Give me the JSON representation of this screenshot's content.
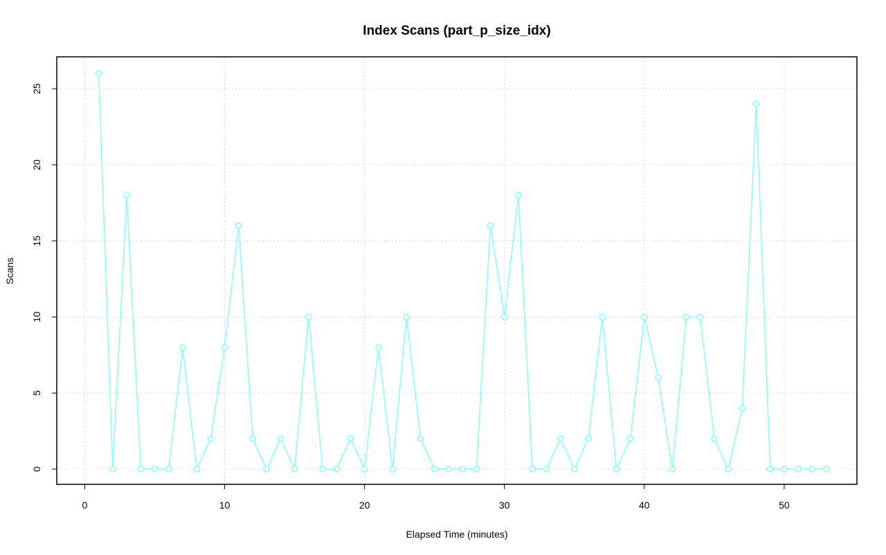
{
  "chart_data": {
    "type": "line",
    "title": "Index Scans (part_p_size_idx)",
    "xlabel": "Elapsed Time (minutes)",
    "ylabel": "Scans",
    "xlim": [
      -2,
      55.2
    ],
    "ylim": [
      -1,
      27.1
    ],
    "xticks": [
      0,
      10,
      20,
      30,
      40,
      50
    ],
    "yticks": [
      0,
      5,
      10,
      15,
      20,
      25
    ],
    "grid": true,
    "series_color": "#7fffff",
    "x": [
      1,
      2,
      3,
      4,
      5,
      6,
      7,
      8,
      9,
      10,
      11,
      12,
      13,
      14,
      15,
      16,
      17,
      18,
      19,
      20,
      21,
      22,
      23,
      24,
      25,
      26,
      27,
      28,
      29,
      30,
      31,
      32,
      33,
      34,
      35,
      36,
      37,
      38,
      39,
      40,
      41,
      42,
      43,
      44,
      45,
      46,
      47,
      48,
      49,
      50,
      51,
      52,
      53
    ],
    "y": [
      26,
      0,
      18,
      0,
      0,
      0,
      8,
      0,
      2,
      8,
      16,
      2,
      0,
      2,
      0,
      10,
      0,
      0,
      2,
      0,
      8,
      0,
      10,
      2,
      0,
      0,
      0,
      0,
      16,
      10,
      18,
      0,
      0,
      2,
      0,
      2,
      10,
      0,
      2,
      10,
      6,
      0,
      10,
      10,
      2,
      0,
      4,
      24,
      0,
      0,
      0,
      0,
      0
    ]
  }
}
